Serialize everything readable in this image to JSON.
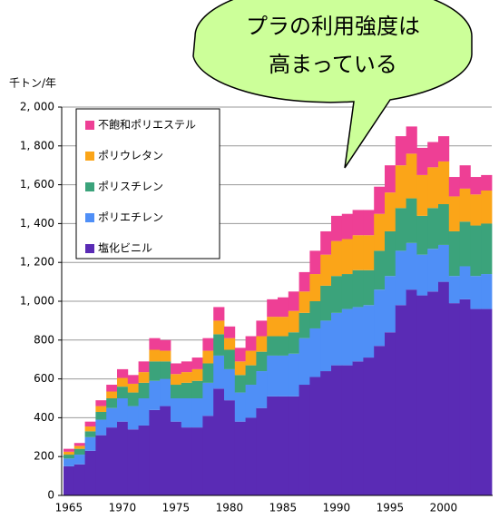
{
  "chart_data": {
    "type": "stacked_bar",
    "y_label": "千トン/年",
    "annotation": [
      "プラの利用強度は",
      "高まっている"
    ],
    "categories": [
      "1965",
      null,
      null,
      null,
      null,
      "1970",
      null,
      null,
      null,
      null,
      "1975",
      null,
      null,
      null,
      null,
      "1980",
      null,
      null,
      null,
      null,
      "1985",
      null,
      null,
      null,
      null,
      "1990",
      null,
      null,
      null,
      null,
      "1995",
      null,
      null,
      null,
      null,
      "2000",
      null,
      null,
      null,
      null
    ],
    "series": [
      {
        "name": "塩化ビニル",
        "color": "#5a2bb5",
        "values": [
          150,
          160,
          230,
          310,
          350,
          380,
          340,
          360,
          440,
          460,
          380,
          350,
          350,
          410,
          550,
          490,
          380,
          400,
          450,
          510,
          510,
          510,
          570,
          610,
          640,
          670,
          670,
          690,
          710,
          770,
          840,
          980,
          1060,
          1030,
          1050,
          1100,
          990,
          1010,
          960,
          960
        ]
      },
      {
        "name": "ポリエチレン",
        "color": "#4f8ff7",
        "values": [
          40,
          50,
          70,
          80,
          100,
          120,
          120,
          140,
          150,
          140,
          120,
          150,
          150,
          170,
          170,
          160,
          150,
          170,
          190,
          210,
          210,
          220,
          240,
          250,
          260,
          270,
          290,
          280,
          270,
          290,
          290,
          280,
          240,
          210,
          220,
          190,
          140,
          170,
          170,
          180
        ]
      },
      {
        "name": "ポリスチレン",
        "color": "#3ba37b",
        "values": [
          20,
          30,
          30,
          40,
          50,
          60,
          70,
          80,
          100,
          90,
          70,
          80,
          90,
          100,
          110,
          100,
          90,
          100,
          100,
          100,
          100,
          110,
          130,
          140,
          180,
          190,
          180,
          190,
          180,
          200,
          230,
          220,
          230,
          200,
          210,
          210,
          230,
          230,
          260,
          260
        ]
      },
      {
        "name": "ポリウレタン",
        "color": "#fba518",
        "values": [
          15,
          15,
          25,
          30,
          35,
          45,
          45,
          55,
          60,
          55,
          55,
          55,
          60,
          65,
          70,
          60,
          70,
          75,
          80,
          100,
          100,
          110,
          110,
          140,
          160,
          180,
          180,
          180,
          180,
          190,
          200,
          220,
          230,
          210,
          210,
          220,
          180,
          170,
          160,
          170
        ]
      },
      {
        "name": "不飽和ポリエステル",
        "color": "#ee3f95",
        "values": [
          15,
          15,
          25,
          30,
          35,
          45,
          45,
          55,
          60,
          55,
          55,
          55,
          60,
          65,
          70,
          60,
          70,
          75,
          80,
          90,
          100,
          100,
          100,
          120,
          120,
          130,
          130,
          130,
          130,
          140,
          140,
          150,
          140,
          140,
          130,
          130,
          100,
          120,
          90,
          80
        ]
      }
    ],
    "ylim": [
      0,
      2000
    ],
    "yticks": [
      0,
      200,
      400,
      600,
      800,
      {
        "value": 1000,
        "label": "1, 000"
      },
      {
        "value": 1200,
        "label": "1, 200"
      },
      {
        "value": 1400,
        "label": "1, 400"
      },
      {
        "value": 1600,
        "label": "1, 600"
      },
      {
        "value": 1800,
        "label": "1, 800"
      },
      {
        "value": 2000,
        "label": "2, 000"
      }
    ],
    "grid": true,
    "legend": "upper left"
  }
}
